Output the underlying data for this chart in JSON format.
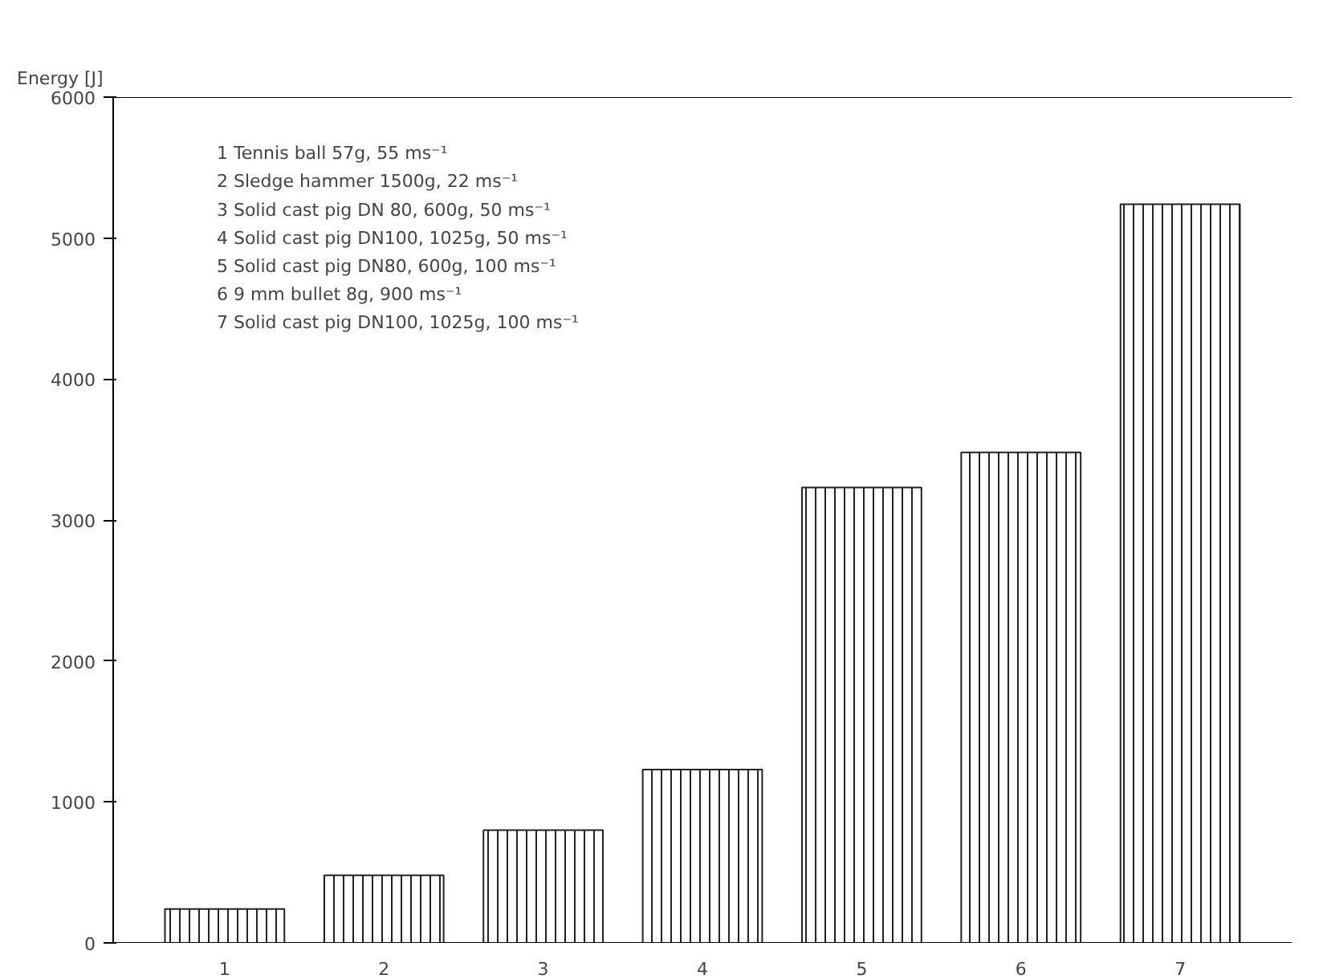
{
  "chart_data": {
    "type": "bar",
    "ylabel": "Energy [J]",
    "categories": [
      "1",
      "2",
      "3",
      "4",
      "5",
      "6",
      "7"
    ],
    "values": [
      240,
      480,
      800,
      1230,
      3230,
      3480,
      5240
    ],
    "color": "#222222",
    "ylim": [
      0,
      6000
    ],
    "yticks": [
      0,
      1000,
      2000,
      3000,
      4000,
      5000,
      6000
    ],
    "grid": false,
    "annotations": [
      "1 Tennis ball 57g, 55 ms⁻¹",
      "2 Sledge hammer 1500g, 22 ms⁻¹",
      "3 Solid cast pig DN 80, 600g, 50 ms⁻¹",
      "4 Solid cast pig DN100, 1025g, 50 ms⁻¹",
      "5 Solid cast pig DN80, 600g, 100 ms⁻¹",
      "6 9 mm bullet 8g, 900 ms⁻¹",
      "7 Solid cast pig DN100, 1025g, 100 ms⁻¹"
    ]
  }
}
